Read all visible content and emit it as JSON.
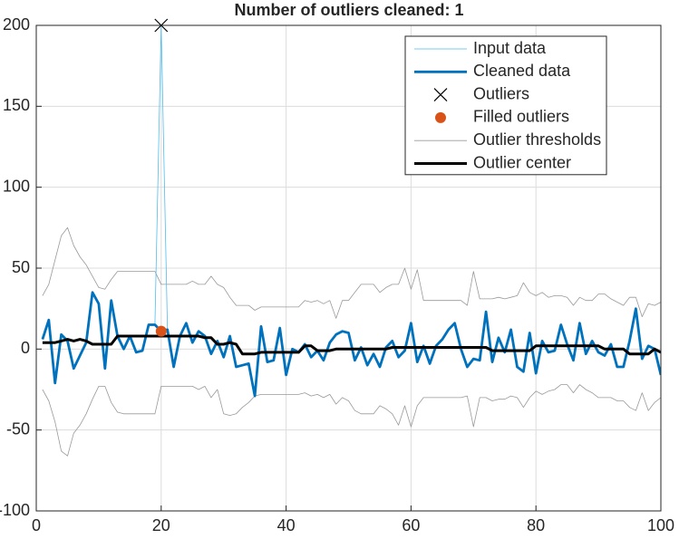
{
  "chart_data": {
    "type": "line",
    "title": "Number of outliers cleaned: 1",
    "x": [
      1,
      2,
      3,
      4,
      5,
      6,
      7,
      8,
      9,
      10,
      11,
      12,
      13,
      14,
      15,
      16,
      17,
      18,
      19,
      20,
      21,
      22,
      23,
      24,
      25,
      26,
      27,
      28,
      29,
      30,
      31,
      32,
      33,
      34,
      35,
      36,
      37,
      38,
      39,
      40,
      41,
      42,
      43,
      44,
      45,
      46,
      47,
      48,
      49,
      50,
      51,
      52,
      53,
      54,
      55,
      56,
      57,
      58,
      59,
      60,
      61,
      62,
      63,
      64,
      65,
      66,
      67,
      68,
      69,
      70,
      71,
      72,
      73,
      74,
      75,
      76,
      77,
      78,
      79,
      80,
      81,
      82,
      83,
      84,
      85,
      86,
      87,
      88,
      89,
      90,
      91,
      92,
      93,
      94,
      95,
      96,
      97,
      98,
      99,
      100
    ],
    "series": [
      {
        "name": "Input data",
        "color": "#4dbeee",
        "style": "thin-line",
        "values": [
          6,
          18,
          -21,
          9,
          5,
          -12,
          -4,
          4,
          35,
          28,
          -12,
          30,
          8,
          0,
          8,
          -2,
          -1,
          15,
          15,
          200,
          12,
          -11,
          8,
          16,
          4,
          11,
          8,
          -3,
          5,
          -5,
          8,
          -11,
          -10,
          -9,
          -29,
          14,
          -8,
          -7,
          13,
          -16,
          0,
          -2,
          3,
          -5,
          -1,
          -7,
          4,
          9,
          11,
          10,
          -7,
          1,
          -10,
          -3,
          -11,
          1,
          5,
          -5,
          -1,
          16,
          -8,
          2,
          -9,
          2,
          6,
          12,
          16,
          0,
          -11,
          -6,
          -7,
          23,
          -8,
          7,
          -2,
          12,
          -11,
          -14,
          10,
          -15,
          5,
          -2,
          -1,
          15,
          3,
          -7,
          16,
          -3,
          5,
          -2,
          -4,
          3,
          -11,
          -11,
          5,
          25,
          -6,
          2,
          0,
          -16
        ]
      },
      {
        "name": "Cleaned data",
        "color": "#0072bd",
        "style": "thick-line",
        "values": [
          6,
          18,
          -21,
          9,
          5,
          -12,
          -4,
          4,
          35,
          28,
          -12,
          30,
          8,
          0,
          8,
          -2,
          -1,
          15,
          15,
          11,
          12,
          -11,
          8,
          16,
          4,
          11,
          8,
          -3,
          5,
          -5,
          8,
          -11,
          -10,
          -9,
          -29,
          14,
          -8,
          -7,
          13,
          -16,
          0,
          -2,
          3,
          -5,
          -1,
          -7,
          4,
          9,
          11,
          10,
          -7,
          1,
          -10,
          -3,
          -11,
          1,
          5,
          -5,
          -1,
          16,
          -8,
          2,
          -9,
          2,
          6,
          12,
          16,
          0,
          -11,
          -6,
          -7,
          23,
          -8,
          7,
          -2,
          12,
          -11,
          -14,
          10,
          -15,
          5,
          -2,
          -1,
          15,
          3,
          -7,
          16,
          -3,
          5,
          -2,
          -4,
          3,
          -11,
          -11,
          5,
          25,
          -6,
          2,
          0,
          -16
        ]
      },
      {
        "name": "Outliers",
        "color": "#000000",
        "style": "x-marker",
        "x": [
          20
        ],
        "values": [
          200
        ]
      },
      {
        "name": "Filled outliers",
        "color": "#d95319",
        "style": "dot-marker",
        "x": [
          20
        ],
        "values": [
          11
        ]
      },
      {
        "name": "Outlier thresholds",
        "color": "#999999",
        "style": "band-lines",
        "values": [
          33,
          40,
          55,
          70,
          75,
          64,
          57,
          52,
          45,
          38,
          37,
          43,
          48,
          48,
          48,
          48,
          48,
          48,
          48,
          40,
          40,
          40,
          40,
          40,
          42,
          40,
          40,
          45,
          40,
          38,
          32,
          27,
          27,
          27,
          24,
          26,
          26,
          26,
          26,
          26,
          26,
          26,
          30,
          29,
          30,
          28,
          30,
          19,
          30,
          30,
          35,
          40,
          40,
          40,
          35,
          38,
          40,
          40,
          50,
          37,
          49,
          30,
          30,
          30,
          30,
          30,
          30,
          30,
          27,
          48,
          31,
          31,
          31,
          32,
          31,
          32,
          33,
          41,
          35,
          33,
          35,
          32,
          33,
          33,
          32,
          27,
          32,
          30,
          30,
          34,
          34,
          31,
          29,
          27,
          32,
          32,
          20,
          28,
          27,
          29
        ],
        "lower": [
          -25,
          -32,
          -45,
          -63,
          -66,
          -52,
          -47,
          -40,
          -31,
          -23,
          -23,
          -33,
          -39,
          -40,
          -40,
          -40,
          -40,
          -40,
          -40,
          -23,
          -23,
          -23,
          -23,
          -23,
          -23,
          -25,
          -23,
          -30,
          -25,
          -40,
          -41,
          -40,
          -36,
          -33,
          -29,
          -28,
          -28,
          -28,
          -28,
          -28,
          -28,
          -28,
          -27,
          -29,
          -28,
          -30,
          -28,
          -34,
          -30,
          -32,
          -38,
          -40,
          -40,
          -40,
          -35,
          -37,
          -40,
          -47,
          -35,
          -48,
          -35,
          -30,
          -30,
          -30,
          -30,
          -30,
          -30,
          -30,
          -29,
          -48,
          -30,
          -30,
          -32,
          -31,
          -31,
          -29,
          -30,
          -36,
          -30,
          -26,
          -28,
          -26,
          -25,
          -22,
          -22,
          -27,
          -22,
          -25,
          -27,
          -30,
          -30,
          -30,
          -32,
          -32,
          -36,
          -38,
          -27,
          -38,
          -33,
          -30
        ]
      },
      {
        "name": "Outlier center",
        "color": "#000000",
        "style": "center-line",
        "values": [
          4,
          4,
          4,
          5,
          6,
          5,
          6,
          5,
          3,
          3,
          3,
          3,
          8,
          8,
          8,
          8,
          8,
          8,
          8,
          8,
          8,
          8,
          8,
          8,
          8,
          8,
          7,
          7,
          3,
          3,
          4,
          3,
          -3,
          -3,
          -3,
          -2,
          -2,
          -2,
          -2,
          -2,
          -2,
          -2,
          2,
          2,
          -1,
          -1,
          -1,
          0,
          0,
          0,
          0,
          0,
          0,
          0,
          0,
          0,
          1,
          1,
          1,
          1,
          1,
          1,
          1,
          1,
          1,
          1,
          1,
          1,
          1,
          1,
          1,
          1,
          -1,
          -1,
          -1,
          -1,
          -1,
          -1,
          -1,
          2,
          2,
          2,
          2,
          2,
          2,
          2,
          2,
          2,
          2,
          2,
          0,
          0,
          0,
          0,
          -3,
          -3,
          -3,
          -3,
          0,
          -2
        ]
      }
    ],
    "xlim": [
      0,
      100
    ],
    "xticks": [
      0,
      20,
      40,
      60,
      80,
      100
    ],
    "ylim": [
      -100,
      200
    ],
    "yticks": [
      -100,
      -50,
      0,
      50,
      100,
      150,
      200
    ],
    "grid": true,
    "legend": "northeast"
  }
}
